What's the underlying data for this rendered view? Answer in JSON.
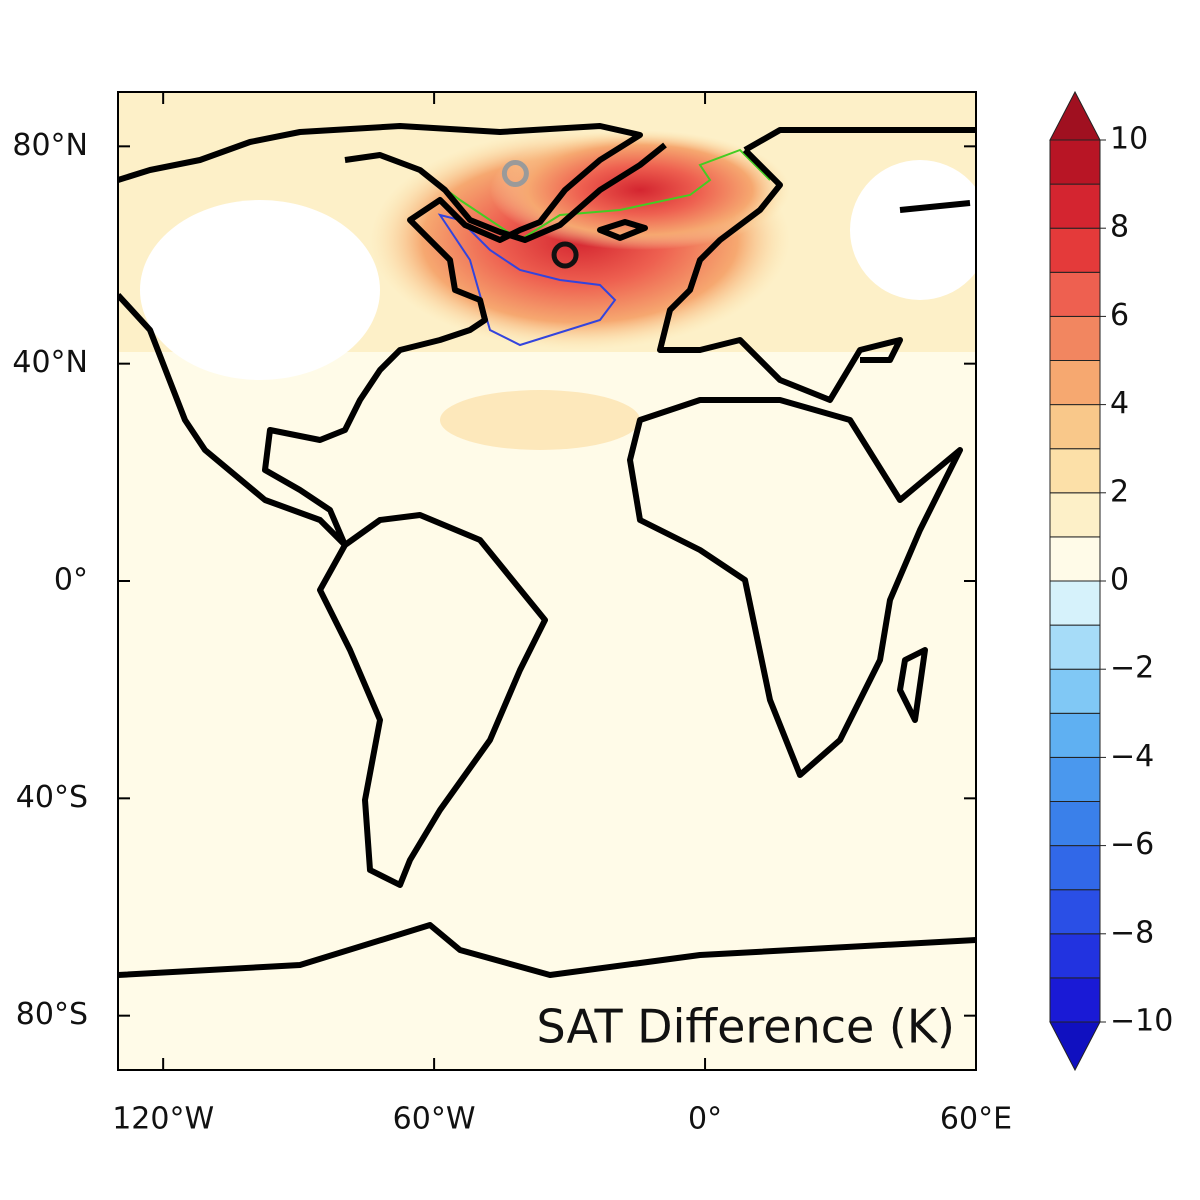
{
  "chart_data": {
    "type": "map",
    "title": "SAT Difference (K)",
    "xlim": [
      -130,
      60
    ],
    "ylim": [
      -90,
      90
    ],
    "xticks": [
      {
        "value": -120,
        "label": "120°W"
      },
      {
        "value": -60,
        "label": "60°W"
      },
      {
        "value": 0,
        "label": "0°"
      },
      {
        "value": 60,
        "label": "60°E"
      }
    ],
    "yticks": [
      {
        "value": 80,
        "label": "80°N"
      },
      {
        "value": 40,
        "label": "40°N"
      },
      {
        "value": 0,
        "label": "0°"
      },
      {
        "value": -40,
        "label": "40°S"
      },
      {
        "value": -80,
        "label": "80°S"
      }
    ],
    "markers": [
      {
        "lon": -42,
        "lat": 75,
        "color": "#9a9a9a"
      },
      {
        "lon": -31,
        "lat": 60,
        "color": "#111111"
      }
    ],
    "colorbar": {
      "lim": [
        -10,
        10
      ],
      "ticks": [
        10,
        8,
        6,
        4,
        2,
        0,
        {
          "value": -2,
          "label": "−2"
        },
        {
          "value": -4,
          "label": "−4"
        },
        {
          "value": -6,
          "label": "−6"
        },
        {
          "value": -8,
          "label": "−8"
        },
        {
          "value": -10,
          "label": "−10"
        }
      ],
      "colors": [
        "#1a1ad6",
        "#2233e0",
        "#2a4fe6",
        "#3168e8",
        "#3a80ea",
        "#4a98ee",
        "#5fb0f2",
        "#80c8f5",
        "#a6dcf8",
        "#d6f2fb",
        "#fffbe8",
        "#fdf0c8",
        "#fce0a8",
        "#f9c88a",
        "#f6a870",
        "#f28660",
        "#ee6050",
        "#e43a3a",
        "#d42530",
        "#b81525"
      ],
      "extend_colors": [
        "#1010c0",
        "#a01020"
      ]
    }
  }
}
